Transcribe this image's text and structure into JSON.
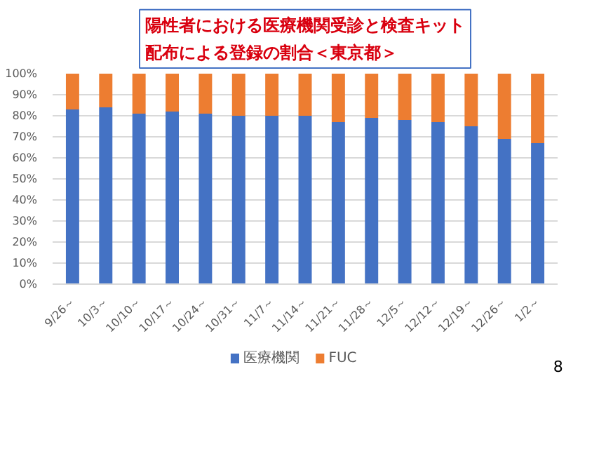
{
  "chart_data": {
    "type": "bar",
    "stacked": true,
    "title": "陽性者における医療機関受診と検査キット配布による登録の割合＜東京都＞",
    "categories": [
      "9/26～",
      "10/3～",
      "10/10～",
      "10/17～",
      "10/24～",
      "10/31～",
      "11/7～",
      "11/14～",
      "11/21～",
      "11/28～",
      "12/5～",
      "12/12～",
      "12/19～",
      "12/26～",
      "1/2～"
    ],
    "series": [
      {
        "name": "医療機関",
        "color": "#4472c4",
        "values": [
          83,
          84,
          81,
          82,
          81,
          80,
          80,
          80,
          77,
          79,
          78,
          77,
          75,
          69,
          67
        ]
      },
      {
        "name": "FUC",
        "color": "#ed7d31",
        "values": [
          17,
          16,
          19,
          18,
          19,
          20,
          20,
          20,
          23,
          21,
          22,
          23,
          25,
          31,
          33
        ]
      }
    ],
    "ylim": [
      0,
      100
    ],
    "yticks": [
      {
        "value": 0,
        "label": "0%"
      },
      {
        "value": 10,
        "label": "10%"
      },
      {
        "value": 20,
        "label": "20%"
      },
      {
        "value": 30,
        "label": "30%"
      },
      {
        "value": 40,
        "label": "40%"
      },
      {
        "value": 50,
        "label": "50%"
      },
      {
        "value": 60,
        "label": "60%"
      },
      {
        "value": 70,
        "label": "70%"
      },
      {
        "value": 80,
        "label": "80%"
      },
      {
        "value": 90,
        "label": "90%"
      },
      {
        "value": 100,
        "label": "100%"
      }
    ],
    "grid": "y",
    "legend": "bottom",
    "annotations": [
      "8"
    ]
  }
}
